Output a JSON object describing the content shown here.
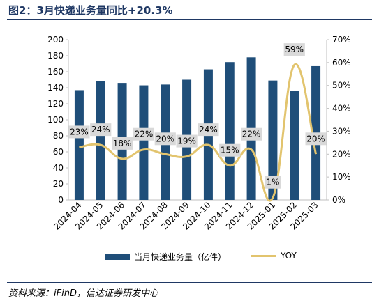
{
  "title": "图2：3月快递业务量同比+20.3%",
  "source": "资料来源：iFinD，信达证券研发中心",
  "colors": {
    "bar": "#1f4e79",
    "line": "#e2c46e",
    "label_bg": "#d9d9d9",
    "title": "#1f3864"
  },
  "chart_data": {
    "type": "bar",
    "categories": [
      "2024-04",
      "2024-05",
      "2024-06",
      "2024-07",
      "2024-08",
      "2024-09",
      "2024-10",
      "2024-11",
      "2024-12",
      "2025-01",
      "2025-02",
      "2025-03"
    ],
    "series": [
      {
        "name": "当月快递业务量（亿件）",
        "type": "bar",
        "axis": "left",
        "values": [
          137,
          148,
          146,
          143,
          144,
          150,
          163,
          172,
          178,
          149,
          136,
          167
        ]
      },
      {
        "name": "YOY",
        "type": "line",
        "axis": "right",
        "values": [
          23,
          24,
          18,
          22,
          20,
          19,
          24,
          15,
          22,
          1,
          59,
          20
        ],
        "labels": [
          "23%",
          "24%",
          "18%",
          "22%",
          "20%",
          "19%",
          "24%",
          "15%",
          "22%",
          "1%",
          "59%",
          "20%"
        ]
      }
    ],
    "y_left": {
      "min": 0,
      "max": 200,
      "ticks": [
        "0",
        "20",
        "40",
        "60",
        "80",
        "100",
        "120",
        "140",
        "160",
        "180",
        "200"
      ]
    },
    "y_right": {
      "min": 0,
      "max": 70,
      "ticks": [
        "0%",
        "10%",
        "20%",
        "30%",
        "40%",
        "50%",
        "60%",
        "70%"
      ]
    },
    "legend_position": "bottom",
    "grid": false
  }
}
